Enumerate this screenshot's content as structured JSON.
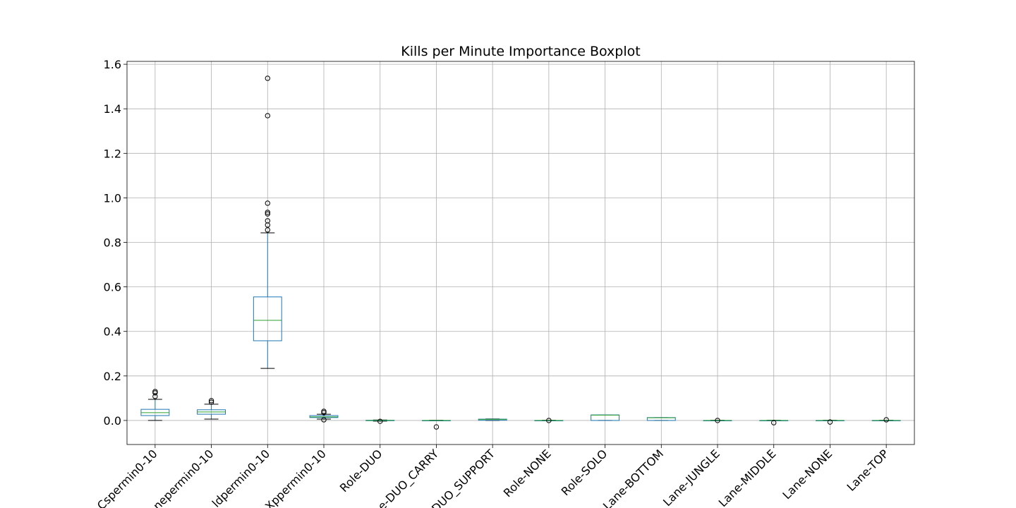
{
  "chart_data": {
    "type": "box",
    "title": "Kills per Minute Importance Boxplot",
    "categories": [
      "Cspermin0-10",
      "nepermin0-10",
      "ldpermin0-10",
      "Xppermin0-10",
      "Role-DUO",
      "e-DUO_CARRY",
      "DUO_SUPPORT",
      "Role-NONE",
      "Role-SOLO",
      "Lane-BOTTOM",
      "Lane-JUNGLE",
      "Lane-MIDDLE",
      "Lane-NONE",
      "Lane-TOP"
    ],
    "boxes": [
      {
        "whislo": 0.0,
        "q1": 0.022,
        "med": 0.035,
        "q3": 0.05,
        "whishi": 0.095,
        "fliers": [
          0.108,
          0.124,
          0.13
        ]
      },
      {
        "whislo": 0.006,
        "q1": 0.028,
        "med": 0.038,
        "q3": 0.048,
        "whishi": 0.073,
        "fliers": [
          0.082,
          0.089
        ]
      },
      {
        "whislo": 0.234,
        "q1": 0.358,
        "med": 0.45,
        "q3": 0.555,
        "whishi": 0.843,
        "fliers": [
          0.856,
          0.878,
          0.897,
          0.928,
          0.935,
          0.976,
          1.369,
          1.537
        ]
      },
      {
        "whislo": 0.006,
        "q1": 0.013,
        "med": 0.016,
        "q3": 0.022,
        "whishi": 0.028,
        "fliers": [
          0.003,
          0.035,
          0.041
        ]
      },
      {
        "whislo": -0.003,
        "q1": -0.001,
        "med": 0,
        "q3": 0.001,
        "whishi": 0.002,
        "fliers": [
          -0.004
        ]
      },
      {
        "whislo": -0.001,
        "q1": 0,
        "med": 0,
        "q3": 0,
        "whishi": 0.001,
        "fliers": [
          -0.029
        ]
      },
      {
        "whislo": 0,
        "q1": 0.001,
        "med": 0.005,
        "q3": 0.006,
        "whishi": 0.007,
        "fliers": []
      },
      {
        "whislo": -0.001,
        "q1": 0,
        "med": 0,
        "q3": 0,
        "whishi": 0.001,
        "fliers": [
          0
        ]
      },
      {
        "whislo": 0,
        "q1": 0,
        "med": 0.024,
        "q3": 0.025,
        "whishi": 0.025,
        "fliers": []
      },
      {
        "whislo": 0,
        "q1": 0,
        "med": 0.012,
        "q3": 0.013,
        "whishi": 0.013,
        "fliers": []
      },
      {
        "whislo": -0.001,
        "q1": 0,
        "med": 0,
        "q3": 0,
        "whishi": 0.001,
        "fliers": [
          0
        ]
      },
      {
        "whislo": -0.001,
        "q1": 0,
        "med": 0,
        "q3": 0,
        "whishi": 0.001,
        "fliers": [
          -0.01
        ]
      },
      {
        "whislo": -0.001,
        "q1": 0,
        "med": 0,
        "q3": 0,
        "whishi": 0.001,
        "fliers": [
          -0.007
        ]
      },
      {
        "whislo": -0.001,
        "q1": 0,
        "med": 0,
        "q3": 0,
        "whishi": 0.001,
        "fliers": [
          0.003
        ]
      }
    ],
    "box_color": "#1f77b4",
    "median_color": "#2ca02c",
    "cap_color": "#000000",
    "ylim": [
      -0.108,
      1.613
    ],
    "yticks": [
      {
        "value": 0,
        "label": "0.0"
      },
      0.2,
      0.4,
      0.6,
      0.8,
      {
        "value": 1,
        "label": "1.0"
      },
      1.2,
      1.4,
      1.6
    ],
    "grid": true
  }
}
